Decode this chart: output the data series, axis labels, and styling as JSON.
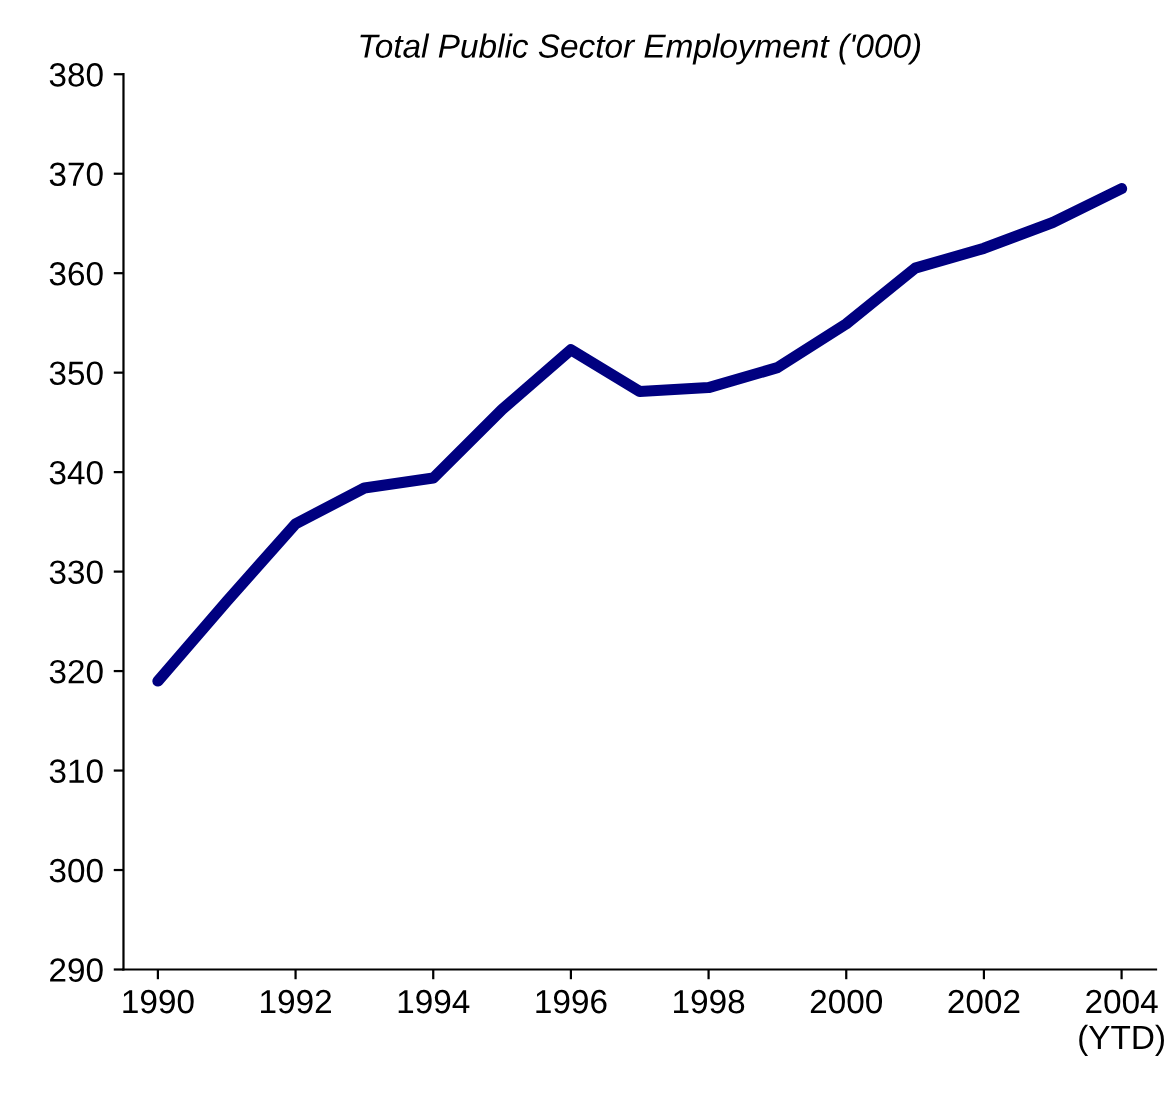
{
  "chart_data": {
    "type": "line",
    "title": "Total Public Sector Employment ('000)",
    "x": [
      1990,
      1991,
      1992,
      1993,
      1994,
      1995,
      1996,
      1997,
      1998,
      1999,
      2000,
      2001,
      2002,
      2003,
      2004
    ],
    "series": [
      {
        "color": "#000080",
        "values": [
          319,
          327,
          334.8,
          338.4,
          339.4,
          346.3,
          352.3,
          348.1,
          348.5,
          350.5,
          354.9,
          360.5,
          362.5,
          365.1,
          368.5
        ]
      }
    ],
    "xlim": [
      1989.5,
      2004.5
    ],
    "xticks": [
      1990,
      1992,
      1994,
      1996,
      1998,
      2000,
      2002,
      {
        "value": 2004,
        "label": "2004\n(YTD)"
      }
    ],
    "ylim": [
      290,
      380
    ],
    "yticks": [
      290,
      300,
      310,
      320,
      330,
      340,
      350,
      360,
      370,
      380
    ],
    "grid": false,
    "legend": false,
    "marker": "none",
    "line_style": "solid"
  }
}
